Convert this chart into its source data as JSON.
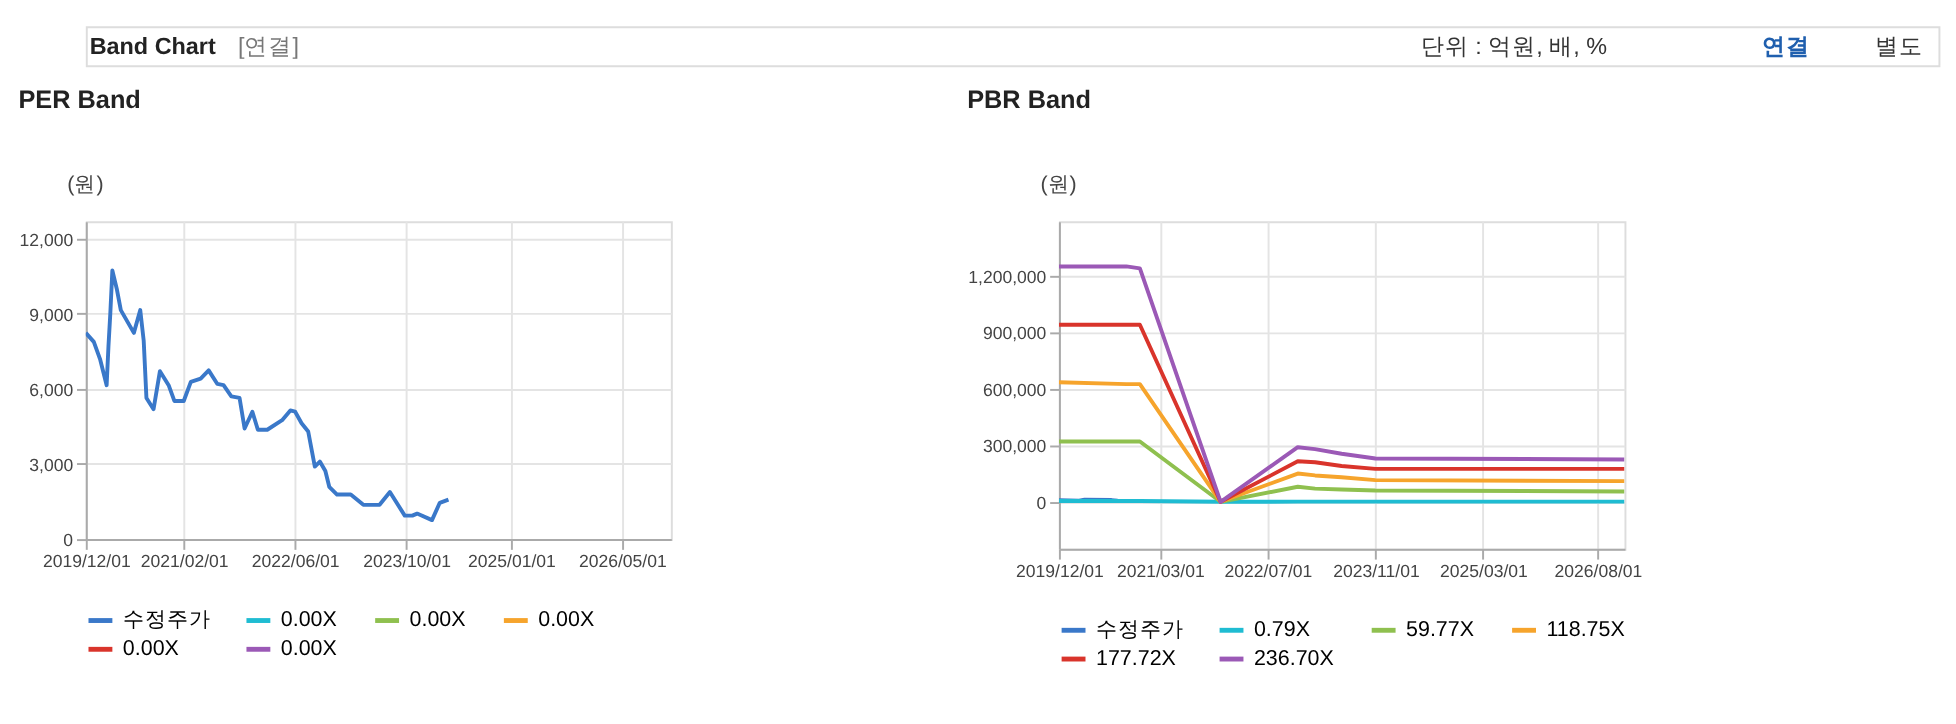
{
  "chart_data": [
    {
      "type": "line",
      "title": "PER Band",
      "ylabel": "(원)",
      "annotations": [
        "Band Chart",
        "[연결]",
        "단위 : 억원, 배, %",
        "연결",
        "별도"
      ],
      "xlim": [
        "2019-12-01",
        "2026-12-01"
      ],
      "xticks": [
        {
          "value": "2019-12-01",
          "label": "2019/12/01"
        },
        {
          "value": "2021-02-01",
          "label": "2021/02/01"
        },
        {
          "value": "2022-06-01",
          "label": "2022/06/01"
        },
        {
          "value": "2023-10-01",
          "label": "2023/10/01"
        },
        {
          "value": "2025-01-01",
          "label": "2025/01/01"
        },
        {
          "value": "2026-05-01",
          "label": "2026/05/01"
        }
      ],
      "ylim": [
        0,
        12700
      ],
      "yticks": [
        {
          "value": 0,
          "label": "0"
        },
        {
          "value": 3000,
          "label": "3,000"
        },
        {
          "value": 6000,
          "label": "6,000"
        },
        {
          "value": 9000,
          "label": "9,000"
        },
        {
          "value": 12000,
          "label": "12,000"
        }
      ],
      "grid": true,
      "legend": "bottom",
      "marker": "none",
      "line_style": "solid",
      "series": [
        {
          "name": "수정주가",
          "color": "#3a78c9",
          "x": [
            "2019-12-01",
            "2020-01-05",
            "2020-02-02",
            "2020-03-01",
            "2020-03-09",
            "2020-03-17",
            "2020-03-26",
            "2020-04-15",
            "2020-05-02",
            "2020-06-28",
            "2020-07-26",
            "2020-08-10",
            "2020-08-22",
            "2020-09-22",
            "2020-10-20",
            "2020-11-27",
            "2020-12-22",
            "2021-02-01",
            "2021-03-04",
            "2021-04-16",
            "2021-05-21",
            "2021-06-28",
            "2021-07-25",
            "2021-08-28",
            "2021-10-03",
            "2021-10-25",
            "2021-11-28",
            "2021-12-22",
            "2022-02-01",
            "2022-04-07",
            "2022-05-13",
            "2022-06-03",
            "2022-07-01",
            "2022-07-30",
            "2022-08-28",
            "2022-09-19",
            "2022-10-13",
            "2022-10-30",
            "2022-12-03",
            "2023-02-01",
            "2023-03-28",
            "2023-06-07",
            "2023-07-22",
            "2023-09-25",
            "2023-10-28",
            "2023-11-18",
            "2024-01-22",
            "2024-02-25",
            "2024-04-03"
          ],
          "values": [
            8240,
            7880,
            7170,
            6150,
            7700,
            9000,
            10730,
            9970,
            9150,
            8240,
            9150,
            7930,
            5640,
            5190,
            6710,
            6150,
            5520,
            5520,
            6280,
            6410,
            6740,
            6200,
            6150,
            5700,
            5640,
            4420,
            5090,
            4370,
            4370,
            4750,
            5140,
            5090,
            4630,
            4300,
            2900,
            3100,
            2720,
            2090,
            1780,
            1780,
            1370,
            1370,
            1880,
            940,
            940,
            1020,
            760,
            1450,
            1580
          ]
        },
        {
          "name": "0.00X",
          "color": "#1fbcd2"
        },
        {
          "name": "0.00X ",
          "color": "#8fc04f"
        },
        {
          "name": "0.00X  ",
          "color": "#f6a42c"
        },
        {
          "name": "0.00X   ",
          "color": "#d9342b"
        },
        {
          "name": "0.00X    ",
          "color": "#9b59b6"
        }
      ]
    },
    {
      "type": "line",
      "title": "PBR Band",
      "ylabel": "(원)",
      "xlim": [
        "2019-12-01",
        "2026-12-01"
      ],
      "xticks": [
        {
          "value": "2019-12-01",
          "label": "2019/12/01"
        },
        {
          "value": "2021-03-01",
          "label": "2021/03/01"
        },
        {
          "value": "2022-07-01",
          "label": "2022/07/01"
        },
        {
          "value": "2023-11-01",
          "label": "2023/11/01"
        },
        {
          "value": "2025-03-01",
          "label": "2025/03/01"
        },
        {
          "value": "2026-08-01",
          "label": "2026/08/01"
        }
      ],
      "ylim": [
        -250000,
        1490000
      ],
      "yticks": [
        {
          "value": 0,
          "label": "0"
        },
        {
          "value": 300000,
          "label": "300,000"
        },
        {
          "value": 600000,
          "label": "600,000"
        },
        {
          "value": 900000,
          "label": "900,000"
        },
        {
          "value": 1200000,
          "label": "1,200,000"
        }
      ],
      "grid": true,
      "legend": "bottom",
      "marker": "none",
      "line_style": "solid",
      "series": [
        {
          "name": "수정주가",
          "color": "#3a78c9",
          "x": [
            "2019-12-01",
            "2020-03-01",
            "2020-03-26",
            "2020-07-26",
            "2020-08-22"
          ],
          "values": [
            8240,
            6150,
            10730,
            9150,
            5640
          ]
        },
        {
          "name": "0.79X",
          "color": "#1fbcd2",
          "x": [
            "2019-12-01",
            "2020-10-01",
            "2020-12-01",
            "2021-12-01",
            "2022-11-15",
            "2023-02-01",
            "2023-06-01",
            "2023-11-01",
            "2026-12-01"
          ],
          "values": [
            4000,
            4000,
            4000,
            0,
            750,
            750,
            750,
            750,
            750
          ]
        },
        {
          "name": "59.77X",
          "color": "#8fc04f",
          "x": [
            "2019-12-01",
            "2020-10-01",
            "2020-12-01",
            "2021-12-01",
            "2022-11-15",
            "2023-02-01",
            "2023-06-01",
            "2023-11-01",
            "2026-12-01"
          ],
          "values": [
            320000,
            320000,
            320000,
            0,
            80000,
            70000,
            65000,
            60000,
            55000
          ]
        },
        {
          "name": "118.75X",
          "color": "#f6a42c",
          "x": [
            "2019-12-01",
            "2020-10-01",
            "2020-12-01",
            "2021-12-01",
            "2022-11-15",
            "2023-02-01",
            "2023-06-01",
            "2023-11-01",
            "2026-12-01"
          ],
          "values": [
            635000,
            625000,
            625000,
            0,
            150000,
            140000,
            130000,
            115000,
            110000
          ]
        },
        {
          "name": "177.72X",
          "color": "#d9342b",
          "x": [
            "2019-12-01",
            "2020-10-01",
            "2020-12-01",
            "2021-12-01",
            "2022-11-15",
            "2023-02-01",
            "2023-06-01",
            "2023-11-01",
            "2026-12-01"
          ],
          "values": [
            940000,
            940000,
            940000,
            0,
            215000,
            210000,
            190000,
            175000,
            175000
          ]
        },
        {
          "name": "236.70X",
          "color": "#9b59b6",
          "x": [
            "2019-12-01",
            "2020-10-01",
            "2020-12-01",
            "2021-12-01",
            "2022-11-15",
            "2023-02-01",
            "2023-06-01",
            "2023-11-01",
            "2026-12-01"
          ],
          "values": [
            1250000,
            1250000,
            1240000,
            0,
            290000,
            280000,
            255000,
            230000,
            225000
          ]
        }
      ]
    }
  ]
}
